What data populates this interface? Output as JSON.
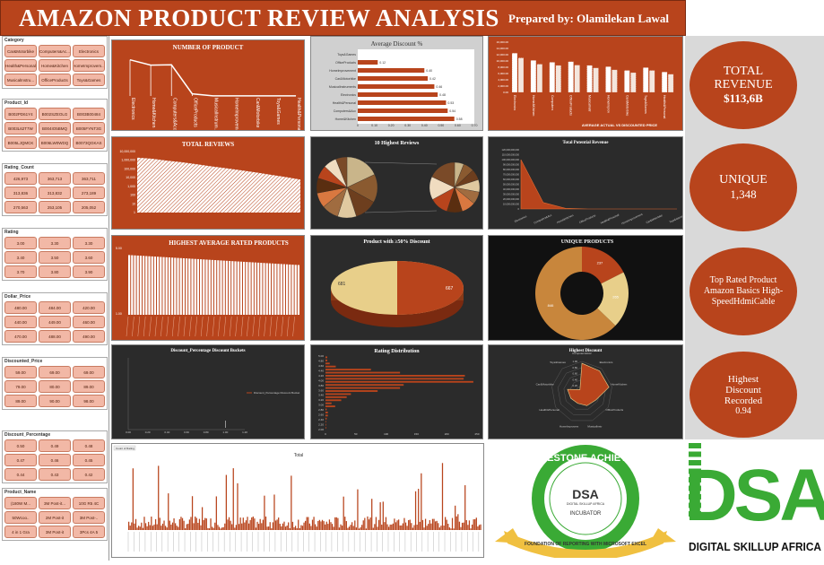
{
  "header": {
    "title": "AMAZON PRODUCT REVIEW ANALYSIS",
    "prepared_by": "Prepared by: Olamilekan Lawal"
  },
  "slicers": [
    {
      "title": "Category",
      "items": [
        "Car&Motorbike",
        "Computers&Ac...",
        "Electronics",
        "Health&Personal",
        "Home&Kitchen",
        "HomeImprovem...",
        "MusicalInstru...",
        "OfficeProducts",
        "Toys&Games"
      ]
    },
    {
      "title": "Product_Id",
      "items": [
        "B002PD61Y4",
        "B002SZEOLG",
        "B003B00484",
        "B003L62T7W",
        "B004IO5BMQ",
        "B005FYNT3G",
        "B005LJQMCK",
        "B006LW0WDQ",
        "B0073QGKAS"
      ]
    },
    {
      "title": "Rating_Count",
      "items": [
        "426,973",
        "363,713",
        "363,711",
        "313,836",
        "313,832",
        "273,189",
        "270,563",
        "253,105",
        "205,052"
      ]
    },
    {
      "title": "Rating",
      "items": [
        "3.00",
        "3.30",
        "3.30",
        "3.40",
        "3.50",
        "3.60",
        "3.70",
        "3.80",
        "3.90"
      ]
    },
    {
      "title": "Dollar_Price",
      "items": [
        "480.00",
        "484.00",
        "420.00",
        "440.00",
        "449.00",
        "460.00",
        "470.00",
        "488.00",
        "490.00"
      ]
    },
    {
      "title": "Discounted_Price",
      "items": [
        "59.00",
        "69.00",
        "69.00",
        "79.00",
        "80.00",
        "89.00",
        "89.00",
        "90.00",
        "98.00"
      ]
    },
    {
      "title": "Discount_Percentage",
      "items": [
        "0.50",
        "0.49",
        "0.48",
        "0.47",
        "0.46",
        "0.45",
        "0.44",
        "0.43",
        "0.42"
      ]
    },
    {
      "title": "Product_Name",
      "items": [
        "(180W M...",
        "3M Post-it...",
        "10G R5 4C",
        "50Wcoo..",
        "2M Post-it",
        "3M Post-..",
        "4 in 1 Gra",
        "3M Post-it",
        "3Pcs 4A 5"
      ]
    }
  ],
  "kpis": {
    "total_revenue_label": "TOTAL REVENUE",
    "total_revenue_value": "$113,6B",
    "unique_label": "UNIQUE",
    "unique_value": "1,348",
    "top_rated_label": "Top Rated Product Amazon Basics High-SpeedHdmiCable",
    "highest_discount_label": "Highest Discount Recorded",
    "highest_discount_value": "0.94"
  },
  "badge": {
    "top": "MILESTONE ACHIEVED",
    "center_brand": "DSA",
    "center_sub": "DIGITAL SKILLUP AFRICA",
    "center_label": "INCUBATOR",
    "bottom": "FOUNDATION OF REPORTING WITH MICROSOFT EXCEL"
  },
  "logo": {
    "letters": "DSA",
    "name": "DIGITAL SKILLUP AFRICA"
  },
  "colors": {
    "brand_orange": "#b8441c",
    "cream": "#e8cf8a",
    "dark_panel": "#2b2b2b",
    "badge_green": "#3aaa35"
  },
  "chart_data": [
    {
      "id": "number_of_product",
      "type": "line",
      "title": "NUMBER OF PRODUCT",
      "categories": [
        "Electronics",
        "Home&Kitchen",
        "Computers&Acc...",
        "OfficeProducts",
        "MusicalInstrum...",
        "HomeImprovement",
        "Car&Motorbike",
        "Toys&Games",
        "Health&Personal"
      ],
      "values": [
        526,
        448,
        453,
        31,
        2,
        2,
        1,
        1,
        1
      ],
      "ylim": [
        0,
        600
      ]
    },
    {
      "id": "average_discount",
      "type": "bar",
      "orientation": "horizontal",
      "title": "Average Discount %",
      "categories": [
        "Toys&Games",
        "OfficeProducts",
        "HomeImprovement",
        "Car&Motorbike",
        "MusicalInstruments",
        "Electronics",
        "Health&Personal",
        "Computers&Acc",
        "Home&Kitchen"
      ],
      "values": [
        0,
        0.12,
        0.4,
        0.42,
        0.46,
        0.48,
        0.53,
        0.54,
        0.58
      ],
      "data_labels": [
        "",
        "0.12",
        "0.40",
        "0.42",
        "0.46",
        "0.48",
        "0.53",
        "0.54",
        "0.58"
      ],
      "xlim": [
        0,
        0.7
      ],
      "ticks": [
        "0",
        "0.10",
        "0.20",
        "0.30",
        "0.40",
        "0.50",
        "0.60",
        "0.70"
      ]
    },
    {
      "id": "actual_vs_discounted",
      "type": "bar",
      "title": "AVERAGE ACTUAL VS DISCOUNTED PRICE",
      "categories": [
        "Electronics",
        "Home&Kitchen",
        "Computers",
        "OfficeProducts",
        "MusicalInstr",
        "HomeImprov",
        "Car&Motorbike",
        "Toys&Games",
        "Health&Personal"
      ],
      "series": [
        {
          "values": [
            12500,
            10200,
            9600,
            9800,
            8600,
            8200,
            7000,
            7900,
            6500
          ]
        },
        {
          "values": [
            11000,
            9000,
            8600,
            8700,
            7800,
            7200,
            6300,
            7000,
            5800
          ]
        }
      ],
      "ylim": [
        0,
        16000
      ],
      "ticks": [
        "0.00",
        "2,000.00",
        "4,000.00",
        "6,000.00",
        "8,000.00",
        "10,000.00",
        "12,000.00",
        "14,000.00",
        "16,000.00"
      ]
    },
    {
      "id": "total_reviews",
      "type": "area",
      "title": "TOTAL REVIEWS",
      "scale": "log",
      "ticks": [
        "1",
        "10",
        "100",
        "1,000",
        "10,000",
        "100,000",
        "1,000,000",
        "10,000,000"
      ],
      "values": [
        2000000,
        1500000,
        900000,
        600000,
        350000,
        200000,
        120000,
        70000,
        40000,
        22000,
        12000,
        6000
      ]
    },
    {
      "id": "top10_reviews",
      "type": "pie",
      "title": "10 Highest Reviews",
      "values": [
        18,
        15,
        12,
        10,
        9,
        8,
        8,
        7,
        7,
        6
      ]
    },
    {
      "id": "total_potential_revenue",
      "type": "area",
      "title": "Total Potential Revenue",
      "categories": [
        "Electronics",
        "Computers&Acc",
        "Home&Kitchen",
        "OfficeProducts",
        "Health&Personal",
        "HomeImprovement",
        "Car&Motorbike",
        "Toys&Games"
      ],
      "values": [
        100000000000,
        13000000000,
        1200000000,
        0,
        0,
        0,
        0,
        0
      ],
      "ylim": [
        0,
        120000000000
      ],
      "ticks": [
        "0",
        "10,000,000,000",
        "20,000,000,000",
        "30,000,000,000",
        "40,000,000,000",
        "50,000,000,000",
        "60,000,000,000",
        "70,000,000,000",
        "80,000,000,000",
        "90,000,000,000",
        "100,000,000,000",
        "110,000,000,000",
        "120,000,000,000"
      ]
    },
    {
      "id": "highest_avg_rated",
      "type": "bar",
      "title": "HIGHEST AVERAGE RATED PRODUCTS",
      "ylim": [
        1,
        5
      ],
      "ticks": [
        "1.00",
        "5.00"
      ],
      "value_start": 4.6,
      "value_end": 4.0,
      "bar_count": 60
    },
    {
      "id": "discount_over_50",
      "type": "pie",
      "title": "Product with ≥50% Discount",
      "values": [
        667,
        681
      ],
      "data_labels": [
        "667",
        "681"
      ]
    },
    {
      "id": "unique_products",
      "type": "pie",
      "title": "UNIQUE PRODUCTS",
      "values": [
        237,
        265,
        846
      ],
      "data_labels": [
        "237",
        "265",
        "846"
      ]
    },
    {
      "id": "discount_buckets",
      "type": "scatter",
      "title": "Discount_Percentage Discount Buckets",
      "legend": "Discount_Percentage Discount Bucket",
      "x_ticks": [
        "0.00",
        "0.20",
        "0.40",
        "0.60",
        "0.80",
        "1.00",
        "1.20"
      ],
      "x": [
        1.0
      ],
      "y": [
        0.1
      ]
    },
    {
      "id": "rating_distribution",
      "type": "bar",
      "orientation": "horizontal",
      "title": "Rating Distribution",
      "categories": [
        "5.00",
        "4.80",
        "4.70",
        "4.60",
        "4.50",
        "4.40",
        "4.30",
        "4.20",
        "4.10",
        "4.00",
        "3.90",
        "3.80",
        "3.70",
        "3.60",
        "3.50",
        "3.40",
        "3.30",
        "3.20",
        "3.10",
        "3.00",
        "2.80",
        "2.60",
        "2.30",
        "2.00"
      ],
      "values": [
        3,
        3,
        7,
        17,
        75,
        123,
        230,
        228,
        244,
        129,
        123,
        86,
        42,
        35,
        26,
        10,
        16,
        2,
        4,
        4,
        2,
        1,
        1,
        1
      ],
      "xlim": [
        0,
        250
      ],
      "ticks": [
        "0",
        "50",
        "100",
        "150",
        "200",
        "250"
      ],
      "y_ticks": [
        "5.00",
        "4.80",
        "4.60",
        "4.40",
        "4.20",
        "4.00",
        "3.80",
        "3.60",
        "3.40",
        "3.20",
        "3.00",
        "2.80",
        "2.60",
        "2.40",
        "2.20",
        "2.00"
      ]
    },
    {
      "id": "highest_discount",
      "type": "radar",
      "title": "Highest Discount",
      "series_label": "Computers&Acc",
      "categories": [
        "Computers&Acc",
        "Electronics",
        "HomeKitchen",
        "OfficeProducts",
        "MusicalInstr",
        "HomeImprovem",
        "Health&Personal",
        "Car&Motorbike",
        "Toys&Games"
      ],
      "values": [
        0.94,
        0.9,
        0.9,
        0.53,
        0.48,
        0.4,
        0.42,
        0.48,
        0.1
      ],
      "ticks": [
        "0.20",
        "0.40",
        "0.60",
        "0.80",
        "1.00"
      ]
    },
    {
      "id": "total",
      "type": "bar",
      "title": "Total",
      "legend": "Count of Rating",
      "ylim": [
        0,
        140
      ],
      "bar_count": 250
    }
  ]
}
